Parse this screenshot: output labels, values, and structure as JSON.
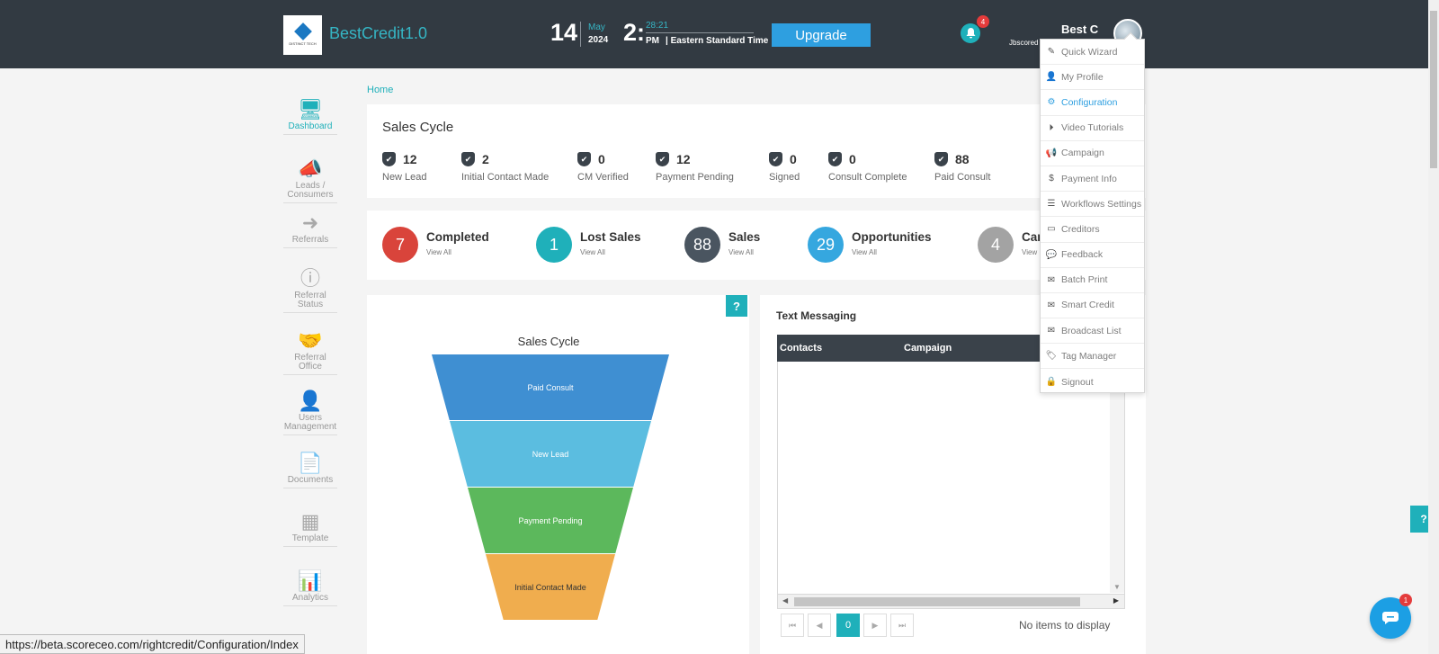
{
  "header": {
    "logo_text": "DISTINCT TECH",
    "brand": "BestCredit1.0",
    "date_day": "14",
    "date_month": "May",
    "date_year": "2024",
    "time_hour": "2:",
    "time_minute": "28:21",
    "time_ampm": "PM",
    "timezone": "| Eastern Standard Time",
    "upgrade_label": "Upgrade",
    "notification_count": "4",
    "user_name": "Best C",
    "user_sub": "Jbscored"
  },
  "user_menu": [
    {
      "label": "Quick Wizard",
      "icon": "wand-icon",
      "glyph": "✎"
    },
    {
      "label": "My Profile",
      "icon": "user-icon",
      "glyph": "👤"
    },
    {
      "label": "Configuration",
      "icon": "gear-icon",
      "glyph": "⚙"
    },
    {
      "label": "Video Tutorials",
      "icon": "play-circle-icon",
      "glyph": "⏵"
    },
    {
      "label": "Campaign",
      "icon": "megaphone-icon",
      "glyph": "📢"
    },
    {
      "label": "Payment Info",
      "icon": "dollar-icon",
      "glyph": "$"
    },
    {
      "label": "Workflows Settings",
      "icon": "list-icon",
      "glyph": "☰"
    },
    {
      "label": "Creditors",
      "icon": "credit-card-icon",
      "glyph": "▭"
    },
    {
      "label": "Feedback",
      "icon": "chat-icon",
      "glyph": "💬"
    },
    {
      "label": "Batch Print",
      "icon": "envelope-icon",
      "glyph": "✉"
    },
    {
      "label": "Smart Credit",
      "icon": "envelope-icon",
      "glyph": "✉"
    },
    {
      "label": "Broadcast List",
      "icon": "envelope-icon",
      "glyph": "✉"
    },
    {
      "label": "Tag Manager",
      "icon": "tags-icon",
      "glyph": "🏷"
    },
    {
      "label": "Signout",
      "icon": "lock-icon",
      "glyph": "🔒"
    }
  ],
  "sidebar": [
    {
      "label": "Dashboard",
      "icon": "monitor-icon",
      "glyph": "🖥"
    },
    {
      "label": "Leads / Consumers",
      "icon": "megaphone-icon",
      "glyph": "📣"
    },
    {
      "label": "Referrals",
      "icon": "arrow-right-icon",
      "glyph": "➜"
    },
    {
      "label": "Referral Status",
      "icon": "info-icon",
      "glyph": "ⓘ"
    },
    {
      "label": "Referral Office",
      "icon": "handshake-icon",
      "glyph": "🤝"
    },
    {
      "label": "Users Management",
      "icon": "user-icon",
      "glyph": "👤"
    },
    {
      "label": "Documents",
      "icon": "document-icon",
      "glyph": "📄"
    },
    {
      "label": "Template",
      "icon": "template-icon",
      "glyph": "▦"
    },
    {
      "label": "Analytics",
      "icon": "bar-chart-icon",
      "glyph": "📊"
    }
  ],
  "breadcrumb": "Home",
  "sales_cycle": {
    "title": "Sales Cycle",
    "stats": [
      {
        "value": "12",
        "label": "New Lead"
      },
      {
        "value": "2",
        "label": "Initial Contact Made"
      },
      {
        "value": "0",
        "label": "CM Verified"
      },
      {
        "value": "12",
        "label": "Payment Pending"
      },
      {
        "value": "0",
        "label": "Signed"
      },
      {
        "value": "0",
        "label": "Consult Complete"
      },
      {
        "value": "88",
        "label": "Paid Consult"
      }
    ]
  },
  "summary": [
    {
      "value": "7",
      "title": "Completed",
      "link": "View All",
      "color": "#d9443b"
    },
    {
      "value": "1",
      "title": "Lost Sales",
      "link": "View All",
      "color": "#1fb0ba"
    },
    {
      "value": "88",
      "title": "Sales",
      "link": "View All",
      "color": "#4a5560"
    },
    {
      "value": "29",
      "title": "Opportunities",
      "link": "View All",
      "color": "#35a7df"
    },
    {
      "value": "4",
      "title": "Car",
      "link": "View",
      "color": "#a3a3a3"
    }
  ],
  "chart_data": {
    "type": "funnel",
    "title": "Sales Cycle",
    "categories": [
      "Paid Consult",
      "New Lead",
      "Payment Pending",
      "Initial Contact Made"
    ],
    "colors": [
      "#3f8fd2",
      "#5bbde0",
      "#5cb85c",
      "#f0ad4e"
    ]
  },
  "help_label": "?",
  "text_messaging": {
    "title": "Text Messaging",
    "columns": [
      "Contacts",
      "Campaign"
    ],
    "pager_current": "0",
    "empty_text": "No items to display"
  },
  "status_url": "https://beta.scoreceo.com/rightcredit/Configuration/Index",
  "chat_badge": "1"
}
